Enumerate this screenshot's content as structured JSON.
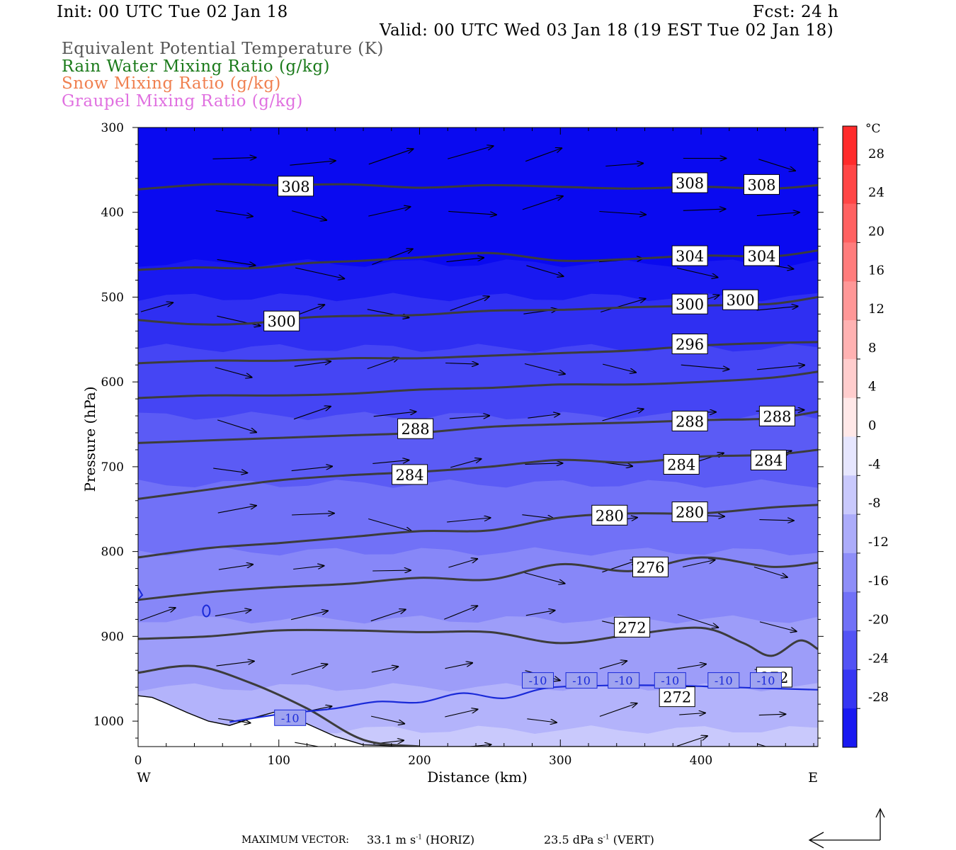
{
  "header": {
    "init": "Init: 00 UTC Tue 02 Jan 18",
    "fcst": "Fcst:   24 h",
    "valid": "Valid: 00 UTC Wed 03 Jan 18 (19 EST Tue 02 Jan 18)"
  },
  "legend": [
    {
      "label": "Equivalent Potential Temperature (K)",
      "color": "#555555"
    },
    {
      "label": "Rain Water Mixing Ratio (g/kg)",
      "color": "#1a7a1a"
    },
    {
      "label": "Snow Mixing Ratio (g/kg)",
      "color": "#f08050"
    },
    {
      "label": "Graupel Mixing Ratio (g/kg)",
      "color": "#e070e0"
    }
  ],
  "colorbar": {
    "unit": "°C",
    "ticks": [
      "28",
      "24",
      "20",
      "16",
      "12",
      "8",
      "4",
      "0",
      "-4",
      "-8",
      "-12",
      "-16",
      "-20",
      "-24",
      "-28"
    ]
  },
  "footer": {
    "max_vector_label": "MAXIMUM VECTOR:",
    "horiz_value": "33.1 m s",
    "horiz_exp": "-1",
    "horiz_tag": "(HORIZ)",
    "vert_value": "23.5 dPa s",
    "vert_exp": "-1",
    "vert_tag": "(VERT)"
  },
  "chart_data": {
    "type": "cross-section",
    "xlabel": "Distance (km)",
    "ylabel": "Pressure (hPa)",
    "xlim": [
      0,
      483
    ],
    "ylim": [
      1030,
      300
    ],
    "xticks": [
      0,
      100,
      200,
      300,
      400
    ],
    "yticks": [
      300,
      400,
      500,
      600,
      700,
      800,
      900,
      1000
    ],
    "x_end_labels": {
      "left": "W",
      "right": "E"
    },
    "theta_e_contours": [
      {
        "value": 308,
        "label": "308",
        "points": [
          [
            0,
            373
          ],
          [
            50,
            367
          ],
          [
            100,
            368
          ],
          [
            150,
            367
          ],
          [
            200,
            371
          ],
          [
            250,
            368
          ],
          [
            300,
            370
          ],
          [
            350,
            372
          ],
          [
            400,
            370
          ],
          [
            450,
            372
          ],
          [
            483,
            368
          ]
        ],
        "label_positions": [
          [
            112,
            370
          ],
          [
            392,
            366
          ],
          [
            443,
            368
          ]
        ]
      },
      {
        "value": 304,
        "label": "304",
        "points": [
          [
            0,
            468
          ],
          [
            40,
            465
          ],
          [
            80,
            466
          ],
          [
            120,
            460
          ],
          [
            160,
            457
          ],
          [
            200,
            453
          ],
          [
            250,
            448
          ],
          [
            300,
            457
          ],
          [
            350,
            455
          ],
          [
            400,
            451
          ],
          [
            450,
            452
          ],
          [
            483,
            445
          ]
        ],
        "label_positions": [
          [
            392,
            452
          ],
          [
            443,
            452
          ]
        ]
      },
      {
        "value": 300,
        "label": "300",
        "points": [
          [
            0,
            527
          ],
          [
            40,
            532
          ],
          [
            80,
            531
          ],
          [
            120,
            524
          ],
          [
            160,
            522
          ],
          [
            200,
            521
          ],
          [
            250,
            516
          ],
          [
            300,
            515
          ],
          [
            350,
            512
          ],
          [
            400,
            510
          ],
          [
            450,
            508
          ],
          [
            483,
            500
          ]
        ],
        "label_positions": [
          [
            102,
            529
          ],
          [
            392,
            509
          ],
          [
            428,
            504
          ]
        ]
      },
      {
        "value": 296,
        "label": "296",
        "points": [
          [
            0,
            578
          ],
          [
            50,
            575
          ],
          [
            100,
            575
          ],
          [
            150,
            572
          ],
          [
            200,
            572
          ],
          [
            250,
            569
          ],
          [
            300,
            566
          ],
          [
            350,
            563
          ],
          [
            400,
            557
          ],
          [
            450,
            554
          ],
          [
            483,
            553
          ]
        ],
        "label_positions": [
          [
            392,
            556
          ]
        ]
      },
      {
        "value": 292,
        "label": "",
        "points": [
          [
            0,
            619
          ],
          [
            50,
            616
          ],
          [
            100,
            616
          ],
          [
            150,
            614
          ],
          [
            200,
            609
          ],
          [
            250,
            607
          ],
          [
            300,
            603
          ],
          [
            350,
            603
          ],
          [
            400,
            600
          ],
          [
            450,
            595
          ],
          [
            483,
            588
          ]
        ],
        "label_positions": []
      },
      {
        "value": 288,
        "label": "288",
        "points": [
          [
            0,
            672
          ],
          [
            50,
            669
          ],
          [
            100,
            666
          ],
          [
            150,
            663
          ],
          [
            200,
            660
          ],
          [
            250,
            653
          ],
          [
            300,
            650
          ],
          [
            350,
            648
          ],
          [
            400,
            645
          ],
          [
            450,
            643
          ],
          [
            483,
            635
          ]
        ],
        "label_positions": [
          [
            197,
            656
          ],
          [
            392,
            647
          ],
          [
            454,
            641
          ]
        ]
      },
      {
        "value": 284,
        "label": "284",
        "points": [
          [
            0,
            738
          ],
          [
            50,
            727
          ],
          [
            100,
            716
          ],
          [
            150,
            710
          ],
          [
            200,
            706
          ],
          [
            250,
            700
          ],
          [
            300,
            692
          ],
          [
            350,
            695
          ],
          [
            400,
            688
          ],
          [
            450,
            686
          ],
          [
            483,
            680
          ]
        ],
        "label_positions": [
          [
            193,
            710
          ],
          [
            386,
            698
          ],
          [
            448,
            693
          ]
        ]
      },
      {
        "value": 280,
        "label": "280",
        "points": [
          [
            0,
            807
          ],
          [
            50,
            796
          ],
          [
            100,
            790
          ],
          [
            150,
            783
          ],
          [
            200,
            776
          ],
          [
            250,
            775
          ],
          [
            300,
            760
          ],
          [
            350,
            755
          ],
          [
            400,
            755
          ],
          [
            450,
            748
          ],
          [
            483,
            745
          ]
        ],
        "label_positions": [
          [
            335,
            758
          ],
          [
            392,
            754
          ]
        ]
      },
      {
        "value": 276,
        "label": "276",
        "points": [
          [
            0,
            857
          ],
          [
            50,
            848
          ],
          [
            100,
            842
          ],
          [
            150,
            838
          ],
          [
            200,
            831
          ],
          [
            250,
            833
          ],
          [
            300,
            815
          ],
          [
            350,
            823
          ],
          [
            400,
            807
          ],
          [
            450,
            818
          ],
          [
            483,
            813
          ]
        ],
        "label_positions": [
          [
            364,
            819
          ]
        ]
      },
      {
        "value": 272,
        "label": "272",
        "points": [
          [
            0,
            903
          ],
          [
            50,
            900
          ],
          [
            100,
            893
          ],
          [
            150,
            893
          ],
          [
            200,
            895
          ],
          [
            250,
            895
          ],
          [
            300,
            908
          ],
          [
            350,
            898
          ],
          [
            400,
            890
          ],
          [
            430,
            908
          ],
          [
            450,
            923
          ],
          [
            470,
            905
          ],
          [
            483,
            915
          ]
        ],
        "label_positions": [
          [
            351,
            890
          ],
          [
            452,
            949
          ],
          [
            383,
            972
          ]
        ]
      },
      {
        "value": 268,
        "label": "",
        "points": [
          [
            0,
            943
          ],
          [
            40,
            935
          ],
          [
            80,
            955
          ],
          [
            120,
            985
          ],
          [
            160,
            1022
          ],
          [
            200,
            1030
          ]
        ],
        "label_positions": []
      }
    ],
    "temperature_contours": [
      {
        "value": -10,
        "label": "-10",
        "points": [
          [
            65,
            1001
          ],
          [
            100,
            992
          ],
          [
            140,
            985
          ],
          [
            170,
            977
          ],
          [
            200,
            978
          ],
          [
            230,
            967
          ],
          [
            260,
            973
          ],
          [
            290,
            961
          ],
          [
            330,
            958
          ],
          [
            380,
            958
          ],
          [
            420,
            960
          ],
          [
            483,
            963
          ]
        ],
        "label_positions": [
          [
            108,
            996
          ],
          [
            284,
            952
          ],
          [
            315,
            952
          ],
          [
            345,
            952
          ],
          [
            378,
            952
          ],
          [
            416,
            952
          ],
          [
            446,
            952
          ]
        ]
      }
    ],
    "shading": {
      "variable": "Temperature",
      "unit": "°C",
      "levels": [
        -28,
        -24,
        -20,
        -16,
        -12,
        -8,
        -4,
        0,
        4,
        8,
        12,
        16,
        20,
        24,
        28
      ],
      "bands_by_pressure_top_to_bottom": [
        {
          "pressure": 300,
          "temp": -32
        },
        {
          "pressure": 460,
          "temp": -30
        },
        {
          "pressure": 500,
          "temp": -27
        },
        {
          "pressure": 560,
          "temp": -24
        },
        {
          "pressure": 640,
          "temp": -21
        },
        {
          "pressure": 720,
          "temp": -18
        },
        {
          "pressure": 800,
          "temp": -15
        },
        {
          "pressure": 880,
          "temp": -12
        },
        {
          "pressure": 960,
          "temp": -9
        },
        {
          "pressure": 1010,
          "temp": -6
        }
      ]
    },
    "terrain_pressure_profile": [
      [
        0,
        970
      ],
      [
        10,
        972
      ],
      [
        20,
        979
      ],
      [
        35,
        990
      ],
      [
        50,
        1000
      ],
      [
        65,
        1005
      ],
      [
        80,
        997
      ],
      [
        100,
        988
      ],
      [
        120,
        1003
      ],
      [
        140,
        1018
      ],
      [
        160,
        1028
      ],
      [
        200,
        1030
      ],
      [
        300,
        1030
      ],
      [
        400,
        1030
      ],
      [
        483,
        1030
      ]
    ],
    "wind_vectors_note": "Wind barbs/arrows drawn schematically across the section from W to E"
  }
}
